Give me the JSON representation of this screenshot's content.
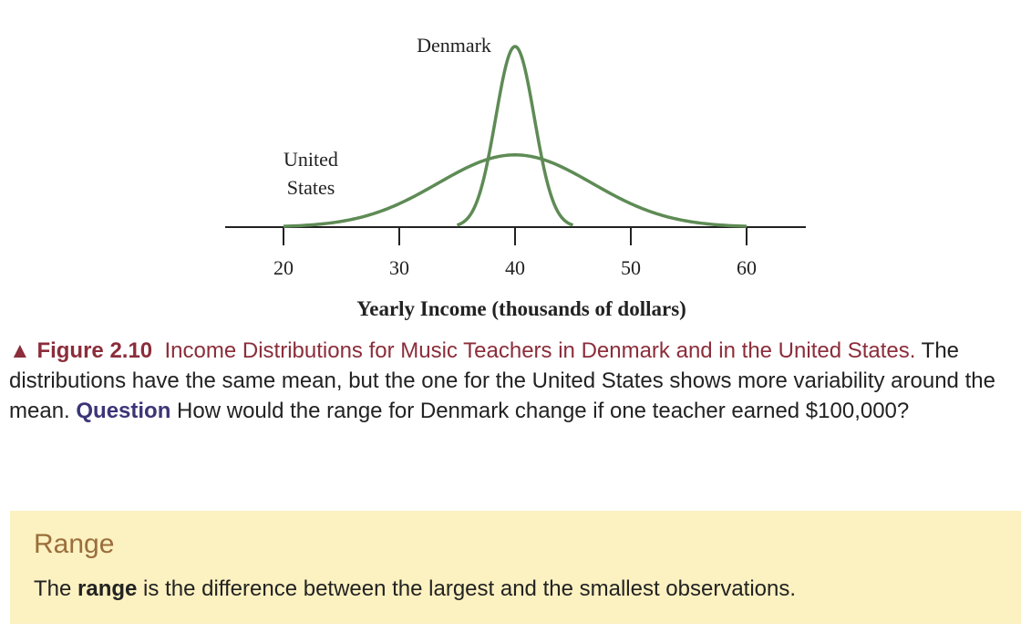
{
  "chart_data": {
    "type": "line",
    "xlabel": "Yearly Income (thousands of dollars)",
    "ylabel": "",
    "xlim": [
      15,
      70
    ],
    "x_ticks": [
      20,
      30,
      40,
      50,
      60
    ],
    "series": [
      {
        "name": "Denmark",
        "shape": "narrow bell curve",
        "center": 40,
        "range": [
          35,
          45
        ],
        "relative_peak_height": 1.0,
        "color": "#5e8b55"
      },
      {
        "name": "United States",
        "shape": "wide bell curve",
        "center": 40,
        "range": [
          20,
          60
        ],
        "relative_peak_height": 0.4,
        "color": "#5e8b55"
      }
    ],
    "annotations": [
      "Denmark",
      "United",
      "States"
    ],
    "grid": false
  },
  "caption": {
    "marker": "▲",
    "figure_label": "Figure 2.10",
    "figure_title": "Income Distributions for Music Teachers in Denmark and in the United States.",
    "body": " The distributions have the same mean, but the one for the United States shows more variability around the mean. ",
    "question_label": "Question",
    "question_text": " How would the range for Denmark change if one teacher earned $100,000?"
  },
  "definition": {
    "title": "Range",
    "text_before": "The ",
    "term": "range",
    "text_after": " is the difference between the largest and the smallest observations."
  },
  "colors": {
    "curve": "#5e8b55",
    "caption_accent": "#8b2d3a",
    "question_accent": "#3b3577",
    "definition_bg": "#fcf1c1",
    "definition_title": "#9a6e3b"
  }
}
